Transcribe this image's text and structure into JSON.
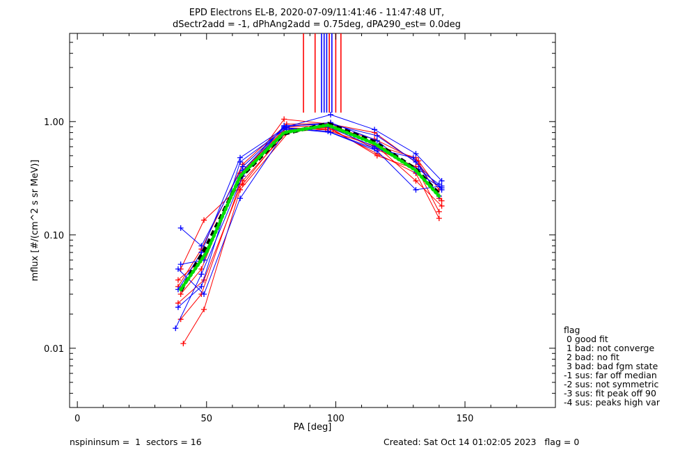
{
  "chart_data": {
    "type": "line",
    "title": "EPD Electrons EL-B, 2020-07-09/11:41:46 - 11:47:48 UT,",
    "subtitle": "dSectr2add = -1, dPhAng2add = 0.75deg, dPA290_est=   0.0deg",
    "xlabel": "PA [deg]",
    "ylabel": "mflux [#/(cm^2 s sr MeV)]",
    "xlim": [
      -3,
      185
    ],
    "ylim": [
      0.003,
      6.0
    ],
    "yscale": "log",
    "x_ticks": [
      0,
      50,
      100,
      150
    ],
    "x_tick_labels": [
      "0",
      "50",
      "100",
      "150"
    ],
    "y_ticks": [
      0.01,
      0.1,
      1.0
    ],
    "y_tick_labels": [
      "0.01",
      "0.10",
      "1.00"
    ],
    "grid": false,
    "series": [
      {
        "color": "#ff0000",
        "style": "thin-with-plus",
        "curves": [
          [
            [
              39,
              0.035
            ],
            [
              48,
              0.075
            ],
            [
              64,
              0.42
            ],
            [
              81,
              0.95
            ],
            [
              98,
              0.96
            ],
            [
              115,
              0.62
            ],
            [
              131,
              0.48
            ],
            [
              140,
              0.21
            ]
          ],
          [
            [
              40,
              0.03
            ],
            [
              48,
              0.05
            ],
            [
              63,
              0.35
            ],
            [
              81,
              0.9
            ],
            [
              97,
              0.92
            ],
            [
              115,
              0.58
            ],
            [
              131,
              0.4
            ],
            [
              140,
              0.16
            ]
          ],
          [
            [
              39,
              0.025
            ],
            [
              49,
              0.04
            ],
            [
              64,
              0.3
            ],
            [
              82,
              0.85
            ],
            [
              97,
              0.88
            ],
            [
              116,
              0.52
            ],
            [
              131,
              0.35
            ],
            [
              140,
              0.14
            ]
          ],
          [
            [
              40,
              0.05
            ],
            [
              49,
              0.135
            ],
            [
              64,
              0.28
            ],
            [
              80,
              0.8
            ],
            [
              98,
              0.9
            ],
            [
              115,
              0.7
            ],
            [
              132,
              0.45
            ],
            [
              140,
              0.25
            ]
          ],
          [
            [
              41,
              0.011
            ],
            [
              49,
              0.022
            ],
            [
              63,
              0.25
            ],
            [
              82,
              0.82
            ],
            [
              96,
              0.85
            ],
            [
              116,
              0.6
            ],
            [
              131,
              0.3
            ],
            [
              141,
              0.18
            ]
          ],
          [
            [
              40,
              0.018
            ],
            [
              48,
              0.03
            ],
            [
              64,
              0.33
            ],
            [
              80,
              1.05
            ],
            [
              98,
              0.95
            ],
            [
              115,
              0.8
            ],
            [
              132,
              0.42
            ],
            [
              141,
              0.2
            ]
          ],
          [
            [
              39,
              0.04
            ],
            [
              48,
              0.06
            ],
            [
              65,
              0.38
            ],
            [
              81,
              0.88
            ],
            [
              99,
              0.85
            ],
            [
              116,
              0.5
            ],
            [
              131,
              0.38
            ],
            [
              140,
              0.22
            ]
          ]
        ]
      },
      {
        "color": "#0000ff",
        "style": "thin-with-plus",
        "curves": [
          [
            [
              39,
              0.033
            ],
            [
              48,
              0.07
            ],
            [
              63,
              0.48
            ],
            [
              81,
              0.9
            ],
            [
              98,
              1.15
            ],
            [
              115,
              0.85
            ],
            [
              131,
              0.52
            ],
            [
              141,
              0.3
            ]
          ],
          [
            [
              40,
              0.115
            ],
            [
              48,
              0.08
            ],
            [
              64,
              0.4
            ],
            [
              80,
              0.88
            ],
            [
              98,
              0.8
            ],
            [
              116,
              0.55
            ],
            [
              131,
              0.25
            ],
            [
              141,
              0.27
            ]
          ],
          [
            [
              39,
              0.05
            ],
            [
              49,
              0.03
            ],
            [
              63,
              0.21
            ],
            [
              81,
              0.85
            ],
            [
              97,
              0.9
            ],
            [
              115,
              0.6
            ],
            [
              132,
              0.38
            ],
            [
              140,
              0.28
            ]
          ],
          [
            [
              38,
              0.015
            ],
            [
              48,
              0.045
            ],
            [
              64,
              0.33
            ],
            [
              80,
              0.92
            ],
            [
              98,
              0.95
            ],
            [
              116,
              0.75
            ],
            [
              131,
              0.44
            ],
            [
              141,
              0.25
            ]
          ],
          [
            [
              39,
              0.023
            ],
            [
              48,
              0.035
            ],
            [
              63,
              0.44
            ],
            [
              81,
              0.88
            ],
            [
              97,
              0.82
            ],
            [
              115,
              0.58
            ],
            [
              130,
              0.48
            ],
            [
              140,
              0.22
            ]
          ],
          [
            [
              40,
              0.055
            ],
            [
              49,
              0.06
            ],
            [
              64,
              0.37
            ],
            [
              80,
              0.9
            ],
            [
              98,
              0.98
            ],
            [
              116,
              0.68
            ],
            [
              131,
              0.36
            ],
            [
              141,
              0.26
            ]
          ]
        ]
      },
      {
        "color": "#000000",
        "style": "thick-dashed",
        "points": [
          [
            40,
            0.032
          ],
          [
            50,
            0.08
          ],
          [
            63,
            0.32
          ],
          [
            80,
            0.78
          ],
          [
            97,
            0.96
          ],
          [
            115,
            0.66
          ],
          [
            131,
            0.38
          ],
          [
            140,
            0.23
          ]
        ]
      },
      {
        "color": "#00dd00",
        "style": "thick-dotted",
        "points": [
          [
            40,
            0.033
          ],
          [
            50,
            0.07
          ],
          [
            63,
            0.33
          ],
          [
            80,
            0.8
          ],
          [
            97,
            0.93
          ],
          [
            115,
            0.64
          ],
          [
            131,
            0.37
          ],
          [
            140,
            0.22
          ]
        ]
      }
    ],
    "vertical_lines": [
      {
        "x": 87.5,
        "color": "#ff0000"
      },
      {
        "x": 92,
        "color": "#ff0000"
      },
      {
        "x": 94.5,
        "color": "#0000ff"
      },
      {
        "x": 95.5,
        "color": "#0000ff"
      },
      {
        "x": 96.5,
        "color": "#0000ff"
      },
      {
        "x": 97.5,
        "color": "#ff0000"
      },
      {
        "x": 98.5,
        "color": "#0000ff"
      },
      {
        "x": 100,
        "color": "#ff0000"
      },
      {
        "x": 102,
        "color": "#ff0000"
      }
    ]
  },
  "legend": {
    "lines": [
      "flag",
      " 0 good fit",
      " 1 bad: not converge",
      " 2 bad: no fit",
      " 3 bad: bad fgm state",
      "-1 sus: far off median",
      "-2 sus: not symmetric",
      "-3 sus: fit peak off 90",
      "-4 sus: peaks high var"
    ]
  },
  "footer": {
    "left": "nspininsum =  1  sectors = 16",
    "right": "Created: Sat Oct 14 01:02:05 2023   flag = 0"
  }
}
